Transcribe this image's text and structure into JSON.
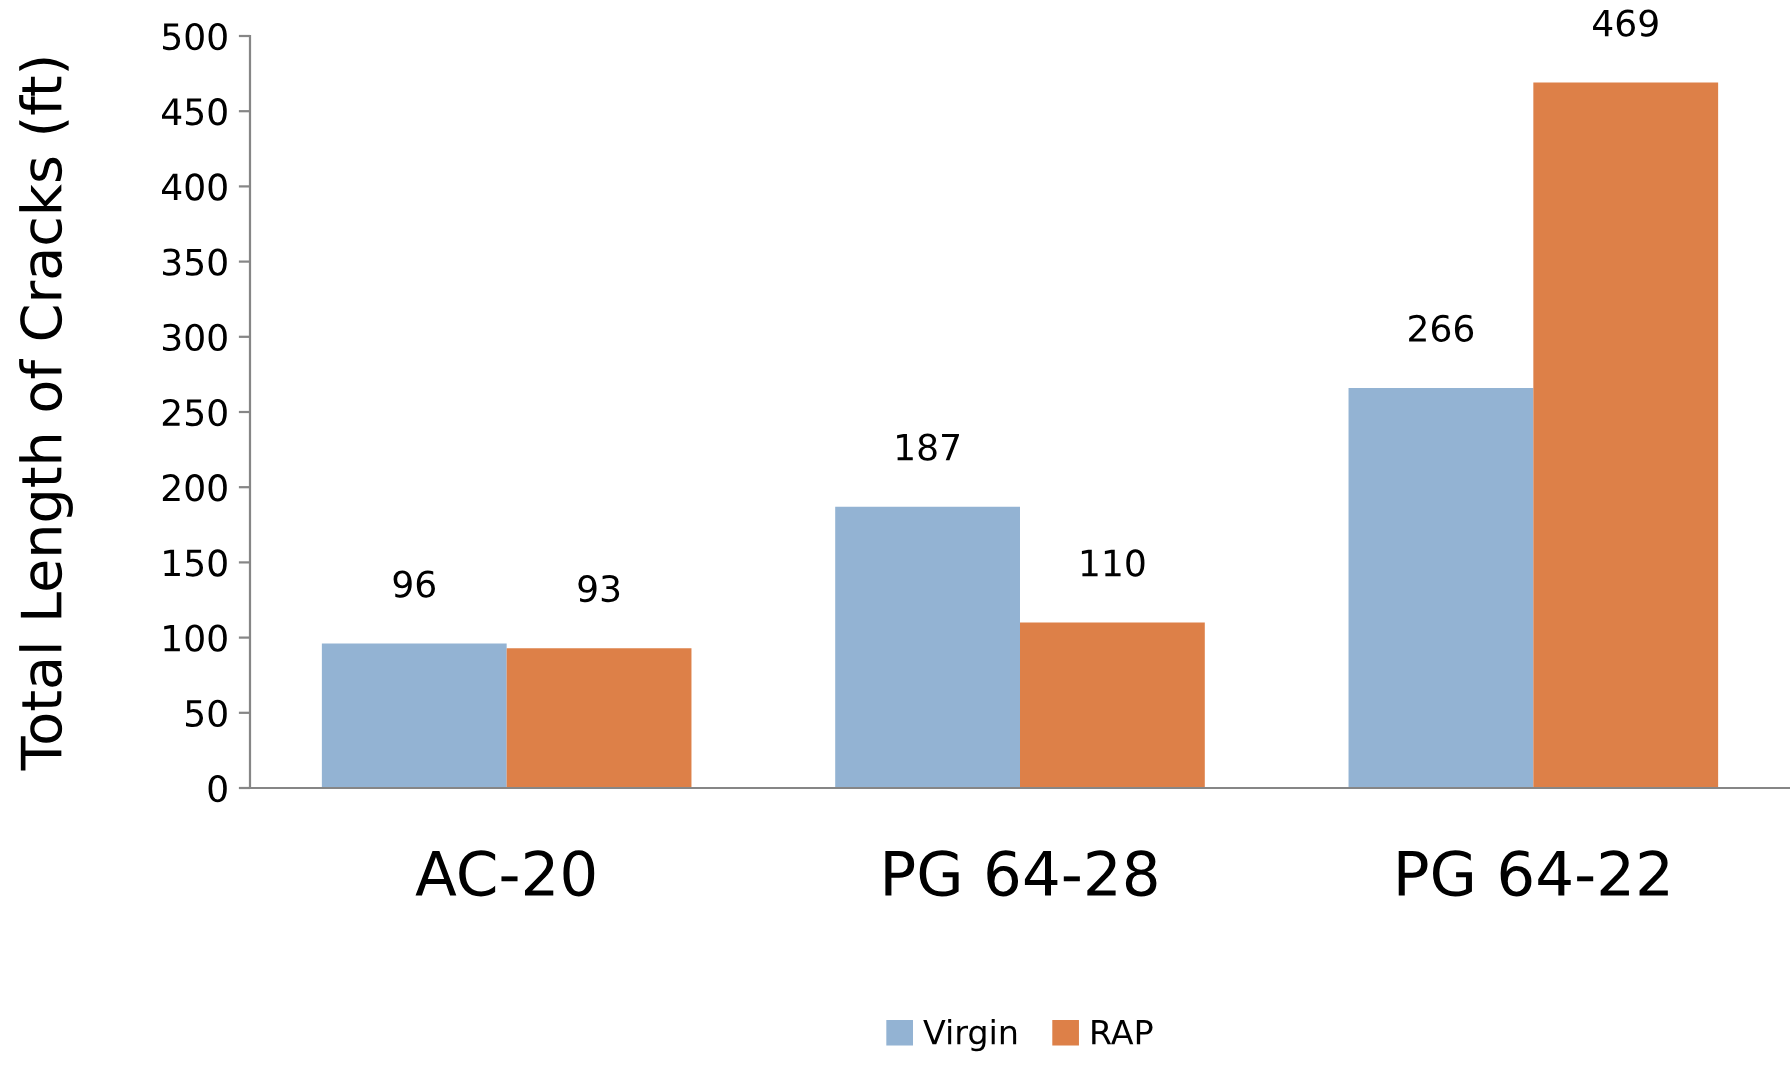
{
  "chart_data": {
    "type": "bar",
    "ylabel": "Total Length of Cracks (ft)",
    "categories": [
      "AC-20",
      "PG 64-28",
      "PG 64-22"
    ],
    "series": [
      {
        "name": "Virgin",
        "color": "#93b3d3",
        "values": [
          96,
          187,
          266
        ]
      },
      {
        "name": "RAP",
        "color": "#dd8048",
        "values": [
          93,
          110,
          469
        ]
      }
    ],
    "ylim": [
      0,
      500
    ],
    "yticks": [
      0,
      50,
      100,
      150,
      200,
      250,
      300,
      350,
      400,
      450,
      500
    ],
    "data_labels": true,
    "grid": false,
    "legend": "bottom"
  }
}
